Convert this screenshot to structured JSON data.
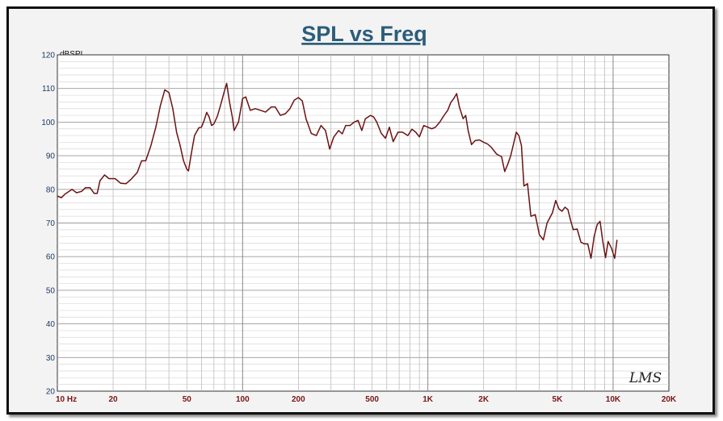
{
  "chart_data": {
    "type": "line",
    "title": "SPL vs Freq",
    "ylabel": "dBSPL",
    "xlabel": "",
    "x_scale": "log",
    "xlim": [
      10,
      20000
    ],
    "ylim": [
      20,
      120
    ],
    "grid": true,
    "y_ticks": [
      "120",
      "110",
      "100",
      "90",
      "80",
      "70",
      "60",
      "50",
      "40",
      "30",
      "20"
    ],
    "x_tick_labels": [
      {
        "f": 10,
        "label": "10  Hz"
      },
      {
        "f": 20,
        "label": "20"
      },
      {
        "f": 50,
        "label": "50"
      },
      {
        "f": 100,
        "label": "100"
      },
      {
        "f": 200,
        "label": "200"
      },
      {
        "f": 500,
        "label": "500"
      },
      {
        "f": 1000,
        "label": "1K"
      },
      {
        "f": 2000,
        "label": "2K"
      },
      {
        "f": 5000,
        "label": "5K"
      },
      {
        "f": 10000,
        "label": "10K"
      },
      {
        "f": 20000,
        "label": "20K"
      }
    ],
    "series": [
      {
        "color": "#6b1212",
        "points": [
          [
            10,
            78
          ],
          [
            10.5,
            77.5
          ],
          [
            11,
            78.6
          ],
          [
            12,
            80
          ],
          [
            12.7,
            79
          ],
          [
            13.5,
            79.4
          ],
          [
            14.2,
            80.5
          ],
          [
            15,
            80.5
          ],
          [
            15.8,
            78.8
          ],
          [
            16.4,
            78.8
          ],
          [
            17,
            82.6
          ],
          [
            18,
            84.3
          ],
          [
            19,
            83.2
          ],
          [
            20.5,
            83.2
          ],
          [
            22,
            81.8
          ],
          [
            23.5,
            81.7
          ],
          [
            25,
            83
          ],
          [
            27,
            85
          ],
          [
            28.5,
            88.5
          ],
          [
            30,
            88.5
          ],
          [
            32,
            93
          ],
          [
            34,
            98.5
          ],
          [
            36,
            105
          ],
          [
            38,
            109.6
          ],
          [
            40,
            108.8
          ],
          [
            42,
            104
          ],
          [
            44,
            97
          ],
          [
            46,
            93
          ],
          [
            48,
            88.5
          ],
          [
            50,
            86
          ],
          [
            51,
            85.5
          ],
          [
            53,
            91
          ],
          [
            55,
            96
          ],
          [
            58,
            98.3
          ],
          [
            60,
            98.5
          ],
          [
            62,
            100.5
          ],
          [
            64,
            102.9
          ],
          [
            66,
            101.5
          ],
          [
            68,
            99
          ],
          [
            70,
            99.5
          ],
          [
            73,
            101.7
          ],
          [
            76,
            105
          ],
          [
            80,
            109.5
          ],
          [
            82,
            111.5
          ],
          [
            85,
            106
          ],
          [
            88,
            101.5
          ],
          [
            90,
            97.5
          ],
          [
            95,
            100
          ],
          [
            100,
            107
          ],
          [
            104,
            107.5
          ],
          [
            110,
            103.5
          ],
          [
            117,
            104
          ],
          [
            125,
            103.5
          ],
          [
            133,
            103
          ],
          [
            143,
            104.5
          ],
          [
            150,
            104.5
          ],
          [
            160,
            102
          ],
          [
            170,
            102.5
          ],
          [
            180,
            104
          ],
          [
            190,
            106.5
          ],
          [
            200,
            107.3
          ],
          [
            210,
            106.3
          ],
          [
            220,
            101
          ],
          [
            235,
            96.6
          ],
          [
            250,
            96
          ],
          [
            265,
            99
          ],
          [
            280,
            97.5
          ],
          [
            295,
            92
          ],
          [
            310,
            95.5
          ],
          [
            330,
            97.5
          ],
          [
            345,
            96.5
          ],
          [
            360,
            99
          ],
          [
            380,
            99
          ],
          [
            400,
            100
          ],
          [
            420,
            100.5
          ],
          [
            440,
            97.5
          ],
          [
            460,
            101
          ],
          [
            490,
            102
          ],
          [
            510,
            101.5
          ],
          [
            530,
            100
          ],
          [
            560,
            96.7
          ],
          [
            590,
            95.2
          ],
          [
            620,
            98.5
          ],
          [
            650,
            94.2
          ],
          [
            690,
            97
          ],
          [
            730,
            97
          ],
          [
            780,
            96
          ],
          [
            820,
            97.9
          ],
          [
            860,
            97
          ],
          [
            900,
            95.6
          ],
          [
            950,
            99
          ],
          [
            1000,
            98.5
          ],
          [
            1050,
            98
          ],
          [
            1100,
            98.5
          ],
          [
            1160,
            100
          ],
          [
            1220,
            101.9
          ],
          [
            1280,
            103.5
          ],
          [
            1330,
            105.8
          ],
          [
            1380,
            107
          ],
          [
            1430,
            108.5
          ],
          [
            1480,
            104.5
          ],
          [
            1550,
            101
          ],
          [
            1600,
            102
          ],
          [
            1650,
            97.5
          ],
          [
            1720,
            93.3
          ],
          [
            1800,
            94.5
          ],
          [
            1900,
            94.7
          ],
          [
            2000,
            94
          ],
          [
            2100,
            93.5
          ],
          [
            2200,
            92.5
          ],
          [
            2350,
            90.5
          ],
          [
            2500,
            89.7
          ],
          [
            2600,
            85.3
          ],
          [
            2700,
            87.5
          ],
          [
            2800,
            90
          ],
          [
            2900,
            93.5
          ],
          [
            3000,
            97
          ],
          [
            3100,
            96
          ],
          [
            3200,
            93
          ],
          [
            3300,
            81
          ],
          [
            3450,
            81.7
          ],
          [
            3600,
            72
          ],
          [
            3800,
            72.5
          ],
          [
            4000,
            66.5
          ],
          [
            4200,
            65
          ],
          [
            4400,
            70
          ],
          [
            4700,
            73
          ],
          [
            4900,
            76.7
          ],
          [
            5100,
            74.2
          ],
          [
            5300,
            73.5
          ],
          [
            5500,
            74.7
          ],
          [
            5700,
            74
          ],
          [
            5900,
            70.7
          ],
          [
            6100,
            68
          ],
          [
            6400,
            68.2
          ],
          [
            6700,
            64.3
          ],
          [
            7000,
            63.8
          ],
          [
            7300,
            63.8
          ],
          [
            7600,
            59.5
          ],
          [
            7900,
            66
          ],
          [
            8200,
            69.5
          ],
          [
            8500,
            70.5
          ],
          [
            8800,
            64.5
          ],
          [
            9100,
            59.7
          ],
          [
            9400,
            64.5
          ],
          [
            9800,
            62.5
          ],
          [
            10200,
            59.5
          ],
          [
            10500,
            65
          ]
        ]
      }
    ]
  },
  "watermark": {
    "text": "LMS"
  }
}
